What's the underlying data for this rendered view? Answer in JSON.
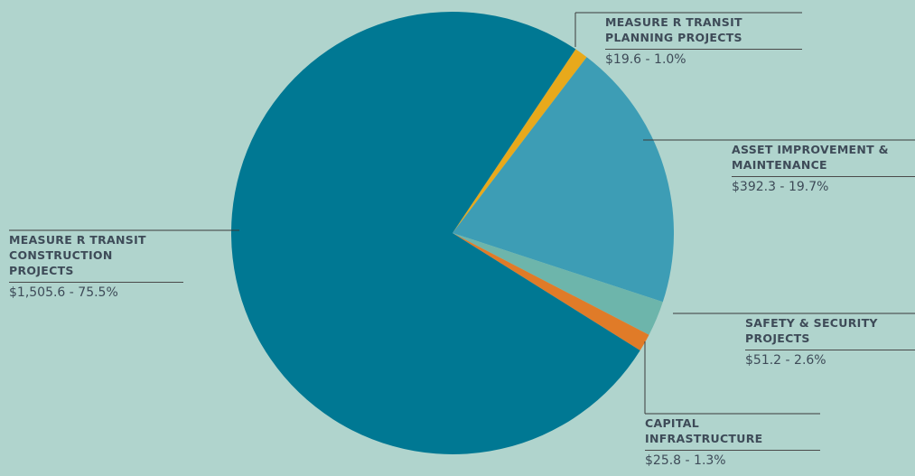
{
  "chart_data": {
    "type": "pie",
    "categories": [
      "MEASURE R TRANSIT PLANNING PROJECTS",
      "ASSET IMPROVEMENT & MAINTENANCE",
      "SAFETY & SECURITY PROJECTS",
      "CAPITAL INFRASTRUCTURE",
      "MEASURE R TRANSIT CONSTRUCTION PROJECTS"
    ],
    "values": [
      19.6,
      392.3,
      51.2,
      25.8,
      1505.6
    ],
    "value_labels": [
      "$19.6 - 1.0%",
      "$392.3 - 19.7%",
      "$51.2 - 2.6%",
      "$25.8 - 1.3%",
      "$1,505.6 - 75.5%"
    ],
    "colors": [
      "#e8a91b",
      "#3d9db5",
      "#6db5ab",
      "#e07b28",
      "#007893"
    ]
  }
}
